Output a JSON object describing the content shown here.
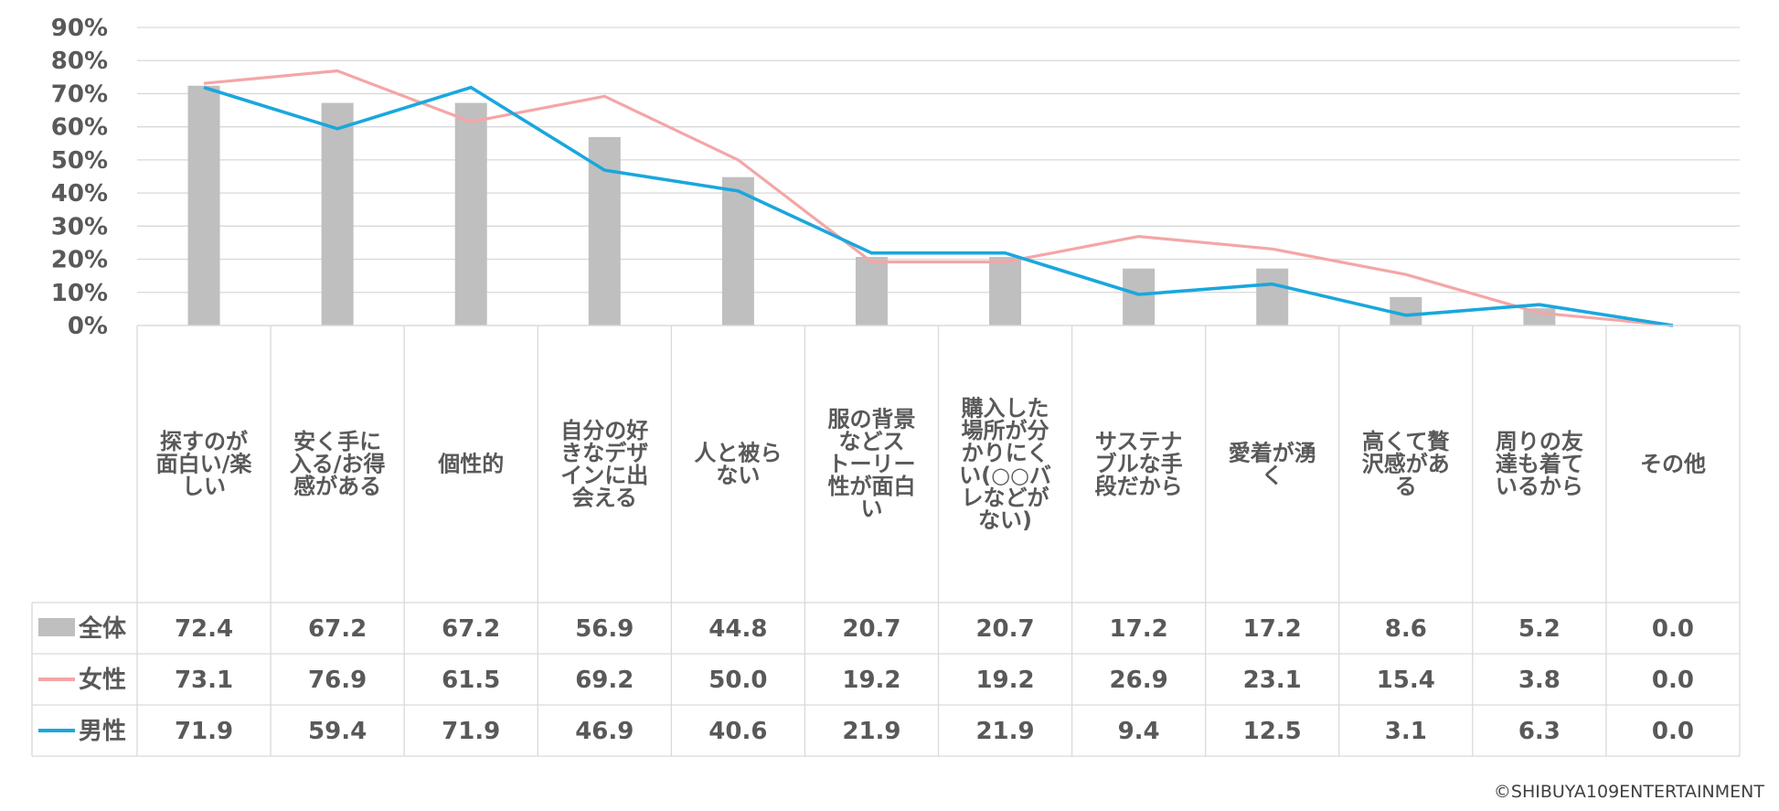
{
  "chart_data": {
    "type": "bar+line",
    "categories": [
      "探すのが面白い/楽しい",
      "安く手に入る/お得感がある",
      "個性的",
      "自分の好きなデザインに出会える",
      "人と被らない",
      "服の背景などストーリー性が面白い",
      "購入した場所が分かりにくい(○○バレなどがない)",
      "サステナブルな手段だから",
      "愛着が湧く",
      "高くて贅沢感がある",
      "周りの友達も着ているから",
      "その他"
    ],
    "category_lines": [
      [
        "探すのが",
        "面白い/楽",
        "しい"
      ],
      [
        "安く手に",
        "入る/お得",
        "感がある"
      ],
      [
        "個性的"
      ],
      [
        "自分の好",
        "きなデザ",
        "インに出",
        "会える"
      ],
      [
        "人と被ら",
        "ない"
      ],
      [
        "服の背景",
        "などス",
        "トーリー",
        "性が面白",
        "い"
      ],
      [
        "購入した",
        "場所が分",
        "かりにく",
        "い(○○バ",
        "レなどが",
        "ない)"
      ],
      [
        "サステナ",
        "ブルな手",
        "段だから"
      ],
      [
        "愛着が湧",
        "く"
      ],
      [
        "高くて贅",
        "沢感があ",
        "る"
      ],
      [
        "周りの友",
        "達も着て",
        "いるから"
      ],
      [
        "その他"
      ]
    ],
    "series": [
      {
        "name": "全体",
        "kind": "bar",
        "color": "#bfbfbf",
        "values": [
          72.4,
          67.2,
          67.2,
          56.9,
          44.8,
          20.7,
          20.7,
          17.2,
          17.2,
          8.6,
          5.2,
          0.0
        ],
        "labels": [
          "72.4",
          "67.2",
          "67.2",
          "56.9",
          "44.8",
          "20.7",
          "20.7",
          "17.2",
          "17.2",
          "8.6",
          "5.2",
          "0.0"
        ]
      },
      {
        "name": "女性",
        "kind": "line",
        "color": "#f4a6a6",
        "values": [
          73.1,
          76.9,
          61.5,
          69.2,
          50.0,
          19.2,
          19.2,
          26.9,
          23.1,
          15.4,
          3.8,
          0.0
        ],
        "labels": [
          "73.1",
          "76.9",
          "61.5",
          "69.2",
          "50.0",
          "19.2",
          "19.2",
          "26.9",
          "23.1",
          "15.4",
          "3.8",
          "0.0"
        ]
      },
      {
        "name": "男性",
        "kind": "line",
        "color": "#1aa7dd",
        "values": [
          71.9,
          59.4,
          71.9,
          46.9,
          40.6,
          21.9,
          21.9,
          9.4,
          12.5,
          3.1,
          6.3,
          0.0
        ],
        "labels": [
          "71.9",
          "59.4",
          "71.9",
          "46.9",
          "40.6",
          "21.9",
          "21.9",
          "9.4",
          "12.5",
          "3.1",
          "6.3",
          "0.0"
        ]
      }
    ],
    "yticks": [
      "90%",
      "80%",
      "70%",
      "60%",
      "50%",
      "40%",
      "30%",
      "20%",
      "10%",
      "0%"
    ],
    "ylim": [
      0,
      90
    ],
    "grid": true,
    "legend": "data-table"
  },
  "copyright": "©SHIBUYA109ENTERTAINMENT"
}
